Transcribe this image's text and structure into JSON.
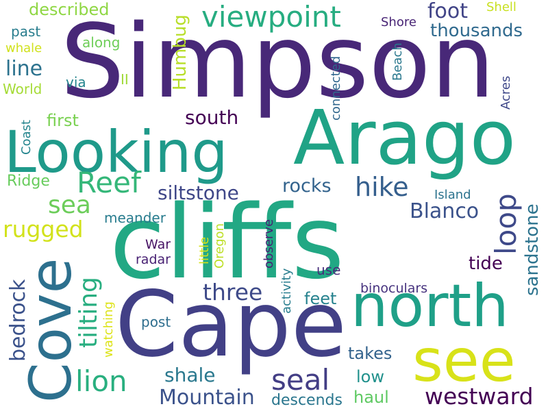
{
  "words": [
    {
      "text": "Simpson",
      "color": "#482878"
    },
    {
      "text": "Arago",
      "color": "#20a386"
    },
    {
      "text": "cliffs",
      "color": "#22a884"
    },
    {
      "text": "Cape",
      "color": "#424086"
    },
    {
      "text": "Looking",
      "color": "#1f9a8a"
    },
    {
      "text": "north",
      "color": "#1fa088"
    },
    {
      "text": "see",
      "color": "#d8e219"
    },
    {
      "text": "Cove",
      "color": "#2d708e"
    },
    {
      "text": "viewpoint",
      "color": "#27ad81"
    },
    {
      "text": "hike",
      "color": "#355f8d"
    },
    {
      "text": "Reef",
      "color": "#35b779"
    },
    {
      "text": "loop",
      "color": "#3e4989"
    },
    {
      "text": "sea",
      "color": "#6ccd5a"
    },
    {
      "text": "seal",
      "color": "#433e85"
    },
    {
      "text": "lion",
      "color": "#29af7f"
    },
    {
      "text": "westward",
      "color": "#440154"
    },
    {
      "text": "Mountain",
      "color": "#3b528b"
    },
    {
      "text": "rugged",
      "color": "#d2e21b"
    },
    {
      "text": "line",
      "color": "#2c728e"
    },
    {
      "text": "foot",
      "color": "#414487"
    },
    {
      "text": "thousands",
      "color": "#306a8e"
    },
    {
      "text": "siltstone",
      "color": "#3f4788"
    },
    {
      "text": "south",
      "color": "#440154"
    },
    {
      "text": "Blanco",
      "color": "#3b528b"
    },
    {
      "text": "rocks",
      "color": "#33638d"
    },
    {
      "text": "three",
      "color": "#3e4a89"
    },
    {
      "text": "tilting",
      "color": "#28ae80"
    },
    {
      "text": "sandstone",
      "color": "#2c738e"
    },
    {
      "text": "bedrock",
      "color": "#3b528b"
    },
    {
      "text": "tide",
      "color": "#440154"
    },
    {
      "text": "shale",
      "color": "#2a788e"
    },
    {
      "text": "Humbug",
      "color": "#b8de29"
    },
    {
      "text": "described",
      "color": "#8fd744"
    },
    {
      "text": "first",
      "color": "#7ad151"
    },
    {
      "text": "feet",
      "color": "#26828e"
    },
    {
      "text": "haul",
      "color": "#5ec962"
    },
    {
      "text": "low",
      "color": "#21918c"
    },
    {
      "text": "takes",
      "color": "#33638d"
    },
    {
      "text": "descends",
      "color": "#2a768e"
    },
    {
      "text": "binoculars",
      "color": "#46327e"
    },
    {
      "text": "radar",
      "color": "#482173"
    },
    {
      "text": "War",
      "color": "#471365"
    },
    {
      "text": "post",
      "color": "#2e6e8e"
    },
    {
      "text": "meander",
      "color": "#287c8e"
    },
    {
      "text": "use",
      "color": "#472d7b"
    },
    {
      "text": "Shore",
      "color": "#482475"
    },
    {
      "text": "Shell",
      "color": "#c8e020"
    },
    {
      "text": "past",
      "color": "#287d8e"
    },
    {
      "text": "whale",
      "color": "#d0e11c"
    },
    {
      "text": "along",
      "color": "#6ece58"
    },
    {
      "text": "World",
      "color": "#a5db36"
    },
    {
      "text": "via",
      "color": "#25858e"
    },
    {
      "text": "II",
      "color": "#a0da39"
    },
    {
      "text": "Ridge",
      "color": "#67cc5c"
    },
    {
      "text": "Island",
      "color": "#2c738e"
    },
    {
      "text": "Coast",
      "color": "#25858e"
    },
    {
      "text": "connected",
      "color": "#31678e"
    },
    {
      "text": "Beach",
      "color": "#2a788e"
    },
    {
      "text": "Acres",
      "color": "#3f4889"
    },
    {
      "text": "observe",
      "color": "#482173"
    },
    {
      "text": "activity",
      "color": "#287d8e"
    },
    {
      "text": "little",
      "color": "#d5e21a"
    },
    {
      "text": "Oregon",
      "color": "#bddf26"
    },
    {
      "text": "watching",
      "color": "#dde318"
    }
  ]
}
